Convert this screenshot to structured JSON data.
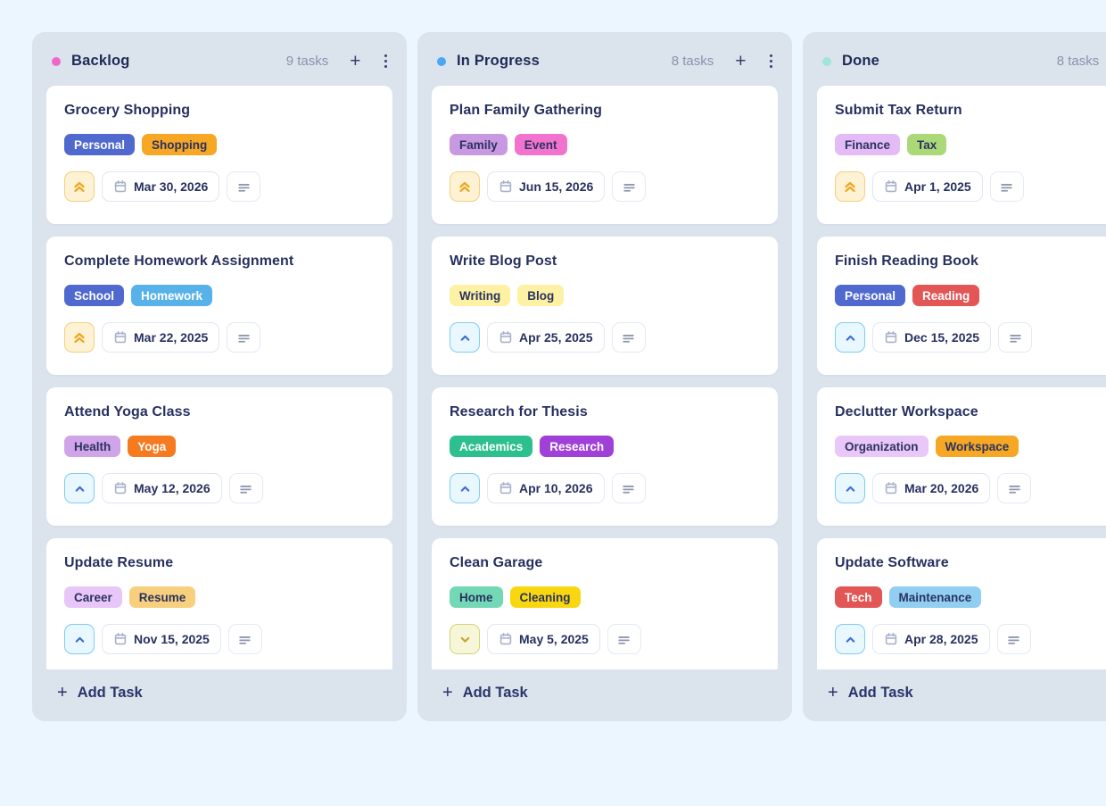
{
  "labels": {
    "add_task": "Add Task",
    "add_icon": "+"
  },
  "board": {
    "columns": [
      {
        "name": "Backlog",
        "dot_color": "#f266cb",
        "count": "9 tasks",
        "tasks": [
          {
            "title": "Grocery Shopping",
            "priority": "high",
            "due": "Mar 30, 2026",
            "tags": [
              {
                "label": "Personal",
                "bg": "#5069cf",
                "fg": "#ffffff"
              },
              {
                "label": "Shopping",
                "bg": "#f6a724",
                "fg": "#2b3260"
              }
            ]
          },
          {
            "title": "Complete Homework Assignment",
            "priority": "high",
            "due": "Mar 22, 2025",
            "tags": [
              {
                "label": "School",
                "bg": "#5069cf",
                "fg": "#ffffff"
              },
              {
                "label": "Homework",
                "bg": "#58b2ea",
                "fg": "#ffffff"
              }
            ]
          },
          {
            "title": "Attend Yoga Class",
            "priority": "medium",
            "due": "May 12, 2026",
            "tags": [
              {
                "label": "Health",
                "bg": "#cfa4e9",
                "fg": "#2b3260"
              },
              {
                "label": "Yoga",
                "bg": "#f57a20",
                "fg": "#ffffff"
              }
            ]
          },
          {
            "title": "Update Resume",
            "priority": "medium",
            "due": "Nov 15, 2025",
            "tags": [
              {
                "label": "Career",
                "bg": "#e8c6f8",
                "fg": "#2b3260"
              },
              {
                "label": "Resume",
                "bg": "#f8d07d",
                "fg": "#2b3260"
              }
            ]
          }
        ]
      },
      {
        "name": "In Progress",
        "dot_color": "#4aa7f6",
        "count": "8 tasks",
        "tasks": [
          {
            "title": "Plan Family Gathering",
            "priority": "high",
            "due": "Jun 15, 2026",
            "tags": [
              {
                "label": "Family",
                "bg": "#c898e0",
                "fg": "#2b3260"
              },
              {
                "label": "Event",
                "bg": "#f273ce",
                "fg": "#2b3260"
              }
            ]
          },
          {
            "title": "Write Blog Post",
            "priority": "medium",
            "due": "Apr 25, 2025",
            "tags": [
              {
                "label": "Writing",
                "bg": "#fdf1a3",
                "fg": "#2b3260"
              },
              {
                "label": "Blog",
                "bg": "#fdf1a3",
                "fg": "#2b3260"
              }
            ]
          },
          {
            "title": "Research for Thesis",
            "priority": "medium",
            "due": "Apr 10, 2026",
            "tags": [
              {
                "label": "Academics",
                "bg": "#2dbf8e",
                "fg": "#ffffff"
              },
              {
                "label": "Research",
                "bg": "#a040d8",
                "fg": "#ffffff"
              }
            ]
          },
          {
            "title": "Clean Garage",
            "priority": "low",
            "due": "May 5, 2025",
            "tags": [
              {
                "label": "Home",
                "bg": "#73d8b6",
                "fg": "#2b3260"
              },
              {
                "label": "Cleaning",
                "bg": "#f8d710",
                "fg": "#2b3260"
              }
            ]
          }
        ]
      },
      {
        "name": "Done",
        "dot_color": "#9fe6d8",
        "count": "8 tasks",
        "tasks": [
          {
            "title": "Submit Tax Return",
            "priority": "high",
            "due": "Apr 1, 2025",
            "tags": [
              {
                "label": "Finance",
                "bg": "#e4bbf4",
                "fg": "#2b3260"
              },
              {
                "label": "Tax",
                "bg": "#abd978",
                "fg": "#2b3260"
              }
            ]
          },
          {
            "title": "Finish Reading Book",
            "priority": "medium",
            "due": "Dec 15, 2025",
            "tags": [
              {
                "label": "Personal",
                "bg": "#5069cf",
                "fg": "#ffffff"
              },
              {
                "label": "Reading",
                "bg": "#e25656",
                "fg": "#ffffff"
              }
            ]
          },
          {
            "title": "Declutter Workspace",
            "priority": "medium",
            "due": "Mar 20, 2026",
            "tags": [
              {
                "label": "Organization",
                "bg": "#eac7f9",
                "fg": "#2b3260"
              },
              {
                "label": "Workspace",
                "bg": "#f6a724",
                "fg": "#2b3260"
              }
            ]
          },
          {
            "title": "Update Software",
            "priority": "medium",
            "due": "Apr 28, 2025",
            "tags": [
              {
                "label": "Tech",
                "bg": "#e25656",
                "fg": "#ffffff"
              },
              {
                "label": "Maintenance",
                "bg": "#90cef2",
                "fg": "#2b3260"
              }
            ]
          }
        ]
      }
    ]
  }
}
